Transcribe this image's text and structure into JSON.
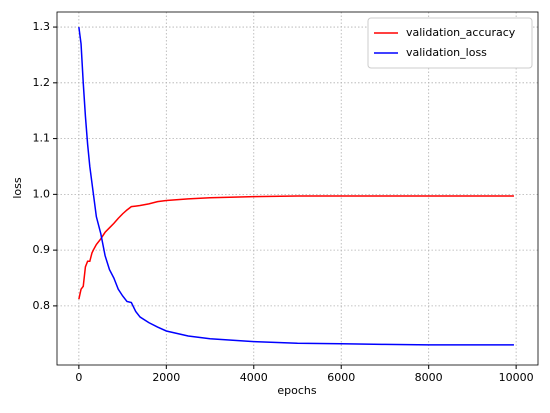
{
  "chart_data": {
    "type": "line",
    "x_label": "epochs",
    "y_label": "loss",
    "x": [
      0,
      50,
      100,
      150,
      200,
      250,
      300,
      350,
      400,
      500,
      600,
      700,
      800,
      900,
      1000,
      1100,
      1200,
      1300,
      1400,
      1600,
      1800,
      2000,
      2500,
      3000,
      4000,
      5000,
      6000,
      7000,
      8000,
      9000,
      9950
    ],
    "series": [
      {
        "name": "validation_accuracy",
        "color": "#ff0000",
        "values": [
          0.812,
          0.83,
          0.835,
          0.87,
          0.88,
          0.88,
          0.895,
          0.903,
          0.91,
          0.92,
          0.932,
          0.94,
          0.948,
          0.957,
          0.965,
          0.972,
          0.978,
          0.979,
          0.98,
          0.983,
          0.987,
          0.989,
          0.992,
          0.994,
          0.996,
          0.997,
          0.997,
          0.997,
          0.997,
          0.997,
          0.997
        ]
      },
      {
        "name": "validation_loss",
        "color": "#0000ff",
        "values": [
          1.3,
          1.27,
          1.2,
          1.14,
          1.09,
          1.05,
          1.02,
          0.99,
          0.96,
          0.93,
          0.89,
          0.865,
          0.85,
          0.83,
          0.818,
          0.808,
          0.806,
          0.79,
          0.78,
          0.77,
          0.762,
          0.755,
          0.746,
          0.741,
          0.736,
          0.733,
          0.732,
          0.731,
          0.73,
          0.73,
          0.73
        ]
      }
    ],
    "xlim": [
      -500,
      10500
    ],
    "ylim": [
      0.694,
      1.327
    ],
    "xticks": [
      0,
      2000,
      4000,
      6000,
      8000,
      10000
    ],
    "yticks": [
      0.8,
      0.9,
      {
        "value": 1,
        "label": "1.0"
      },
      1.1,
      1.2,
      1.3
    ],
    "grid": true,
    "legend": "upper-right"
  }
}
